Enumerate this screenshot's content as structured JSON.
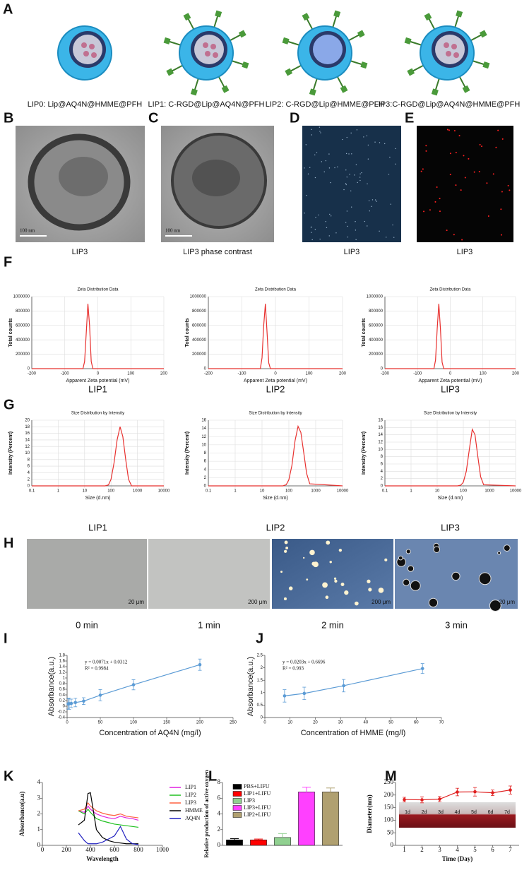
{
  "figure": {
    "panel_labels": [
      "A",
      "B",
      "C",
      "D",
      "E",
      "F",
      "G",
      "H",
      "I",
      "J",
      "K",
      "L",
      "M"
    ],
    "a_captions": [
      "LIP0: Lip@AQ4N@HMME@PFH",
      "LIP1: C-RGD@Lip@AQ4N@PFH",
      "LIP2: C-RGD@Lip@HMME@PFH",
      "LIP3:C-RGD@Lip@AQ4N@HMME@PFH"
    ],
    "images": [
      {
        "caption": "LIP3",
        "scale": "100 nm"
      },
      {
        "caption": "LIP3 phase contrast",
        "scale": "100 nm"
      },
      {
        "caption": "LIP3"
      },
      {
        "caption": "LIP3"
      }
    ],
    "h_images": [
      {
        "caption": "0 min",
        "scale": "20 μm"
      },
      {
        "caption": "1 min",
        "scale": "200 μm"
      },
      {
        "caption": "2 min",
        "scale": "200 μm"
      },
      {
        "caption": "3 min",
        "scale": "20 μm"
      }
    ],
    "m_inset_labels": [
      "1d",
      "2d",
      "3d",
      "4d",
      "5d",
      "6d",
      "7d"
    ]
  },
  "chart_data": [
    {
      "type": "line",
      "title": "Zeta Distribution Data",
      "x_label": "Apparent Zeta potential (mV)",
      "y_label": "Total counts",
      "caption": "LIP1",
      "x": [
        -200,
        -55,
        -45,
        -40,
        -35,
        -30,
        -25,
        -20,
        -15,
        200
      ],
      "values": [
        0,
        0,
        0,
        100000,
        500000,
        900000,
        600000,
        100000,
        0,
        0
      ],
      "color": "#e8312f",
      "xlim": [
        -200,
        200
      ],
      "xticks": [
        -200,
        -100,
        0,
        100,
        200
      ],
      "ylim": [
        0,
        1000000
      ],
      "yticks": [
        0,
        200000,
        400000,
        600000,
        800000,
        1000000
      ],
      "grid": true
    },
    {
      "type": "line",
      "title": "Zeta Distribution Data",
      "x_label": "Apparent Zeta potential (mV)",
      "y_label": "Total counts",
      "caption": "LIP2",
      "x": [
        -200,
        -55,
        -45,
        -40,
        -35,
        -30,
        -25,
        -20,
        -15,
        200
      ],
      "values": [
        0,
        0,
        0,
        150000,
        600000,
        900000,
        500000,
        80000,
        0,
        0
      ],
      "color": "#e8312f",
      "xlim": [
        -200,
        200
      ],
      "xticks": [
        -200,
        -100,
        0,
        100,
        200
      ],
      "ylim": [
        0,
        1000000
      ],
      "yticks": [
        0,
        200000,
        400000,
        600000,
        800000,
        1000000
      ],
      "grid": true
    },
    {
      "type": "line",
      "title": "Zeta Distribution Data",
      "x_label": "Apparent Zeta potential (mV)",
      "y_label": "Total counts",
      "caption": "LIP3",
      "x": [
        -200,
        -60,
        -50,
        -45,
        -40,
        -35,
        -30,
        -25,
        -20,
        200
      ],
      "values": [
        0,
        0,
        0,
        120000,
        550000,
        900000,
        550000,
        90000,
        0,
        0
      ],
      "color": "#e8312f",
      "xlim": [
        -200,
        200
      ],
      "xticks": [
        -200,
        -100,
        0,
        100,
        200
      ],
      "ylim": [
        0,
        1000000
      ],
      "yticks": [
        0,
        200000,
        400000,
        600000,
        800000,
        1000000
      ],
      "grid": true
    },
    {
      "type": "line",
      "title": "Size Distribution by Intensity",
      "x_label": "Size (d.nm)",
      "y_label": "Intensity (Percent)",
      "caption": "LIP1",
      "log_x": true,
      "x": [
        0.1,
        60,
        80,
        100,
        130,
        170,
        220,
        280,
        360,
        460,
        600,
        10000
      ],
      "values": [
        0,
        0,
        0.3,
        2,
        7,
        14,
        18,
        15,
        8,
        2,
        0,
        0
      ],
      "color": "#e8312f",
      "xlim": [
        0.1,
        10000
      ],
      "xticks": [
        0.1,
        1,
        10,
        100,
        1000,
        10000
      ],
      "ylim": [
        0,
        20
      ],
      "yticks": [
        0,
        2,
        4,
        6,
        8,
        10,
        12,
        14,
        16,
        18,
        20
      ],
      "grid": true
    },
    {
      "type": "line",
      "title": "Size Distribution by Intensity",
      "x_label": "Size (d.nm)",
      "y_label": "Intensity (Percent)",
      "caption": "LIP2",
      "log_x": true,
      "x": [
        0.1,
        60,
        80,
        100,
        130,
        170,
        220,
        280,
        360,
        460,
        600,
        10000
      ],
      "values": [
        0,
        0,
        0.3,
        1.5,
        5,
        11,
        14.5,
        13,
        8,
        3,
        0.5,
        0
      ],
      "color": "#e8312f",
      "xlim": [
        0.1,
        10000
      ],
      "xticks": [
        0.1,
        1,
        10,
        100,
        1000,
        10000
      ],
      "ylim": [
        0,
        16
      ],
      "yticks": [
        0,
        2,
        4,
        6,
        8,
        10,
        12,
        14,
        16
      ],
      "grid": true
    },
    {
      "type": "line",
      "title": "Size Distribution by Intensity",
      "x_label": "Size (d.nm)",
      "y_label": "Intensity (Percent)",
      "caption": "LIP3",
      "log_x": true,
      "x": [
        0.1,
        60,
        80,
        100,
        130,
        170,
        220,
        280,
        360,
        460,
        600,
        10000
      ],
      "values": [
        0,
        0,
        0.2,
        1,
        4,
        10,
        15.5,
        14,
        8,
        2.5,
        0.3,
        0
      ],
      "color": "#e8312f",
      "xlim": [
        0.1,
        10000
      ],
      "xticks": [
        0.1,
        1,
        10,
        100,
        1000,
        10000
      ],
      "ylim": [
        0,
        18
      ],
      "yticks": [
        0,
        2,
        4,
        6,
        8,
        10,
        12,
        14,
        16,
        18
      ],
      "grid": true
    },
    {
      "type": "line",
      "x_label": "Concentration of AQ4N (mg/l)",
      "y_label": "Absorbance(a.u.)",
      "annotations": [
        "y = 0.0071x + 0.0312",
        "R² = 0.9984"
      ],
      "markers": true,
      "x": [
        1.5625,
        3.125,
        6.25,
        12.5,
        25,
        50,
        100,
        200
      ],
      "values": [
        0.08,
        0.09,
        0.1,
        0.13,
        0.18,
        0.39,
        0.76,
        1.47
      ],
      "errors": [
        0.18,
        0.2,
        0.15,
        0.15,
        0.12,
        0.2,
        0.18,
        0.2
      ],
      "color": "#5b9bd5",
      "xlim": [
        0,
        250
      ],
      "xticks": [
        0,
        50,
        100,
        150,
        200,
        250
      ],
      "ylim": [
        -0.4,
        1.8
      ],
      "yticks": [
        -0.4,
        -0.2,
        0,
        0.2,
        0.4,
        0.6,
        0.8,
        1,
        1.2,
        1.4,
        1.6,
        1.8
      ],
      "grid": false
    },
    {
      "type": "line",
      "x_label": "Concentration of HMME (mg/l)",
      "y_label": "Absorbance(a.u.)",
      "annotations": [
        "y = 0.0203x + 0.6696",
        "R² = 0.993"
      ],
      "markers": true,
      "x": [
        7.8125,
        15.625,
        31.25,
        62.5
      ],
      "values": [
        0.87,
        0.97,
        1.28,
        1.97
      ],
      "errors": [
        0.25,
        0.25,
        0.25,
        0.2
      ],
      "color": "#5b9bd5",
      "xlim": [
        0,
        70
      ],
      "xticks": [
        0,
        10,
        20,
        30,
        40,
        50,
        60,
        70
      ],
      "ylim": [
        0,
        2.5
      ],
      "yticks": [
        0,
        0.5,
        1,
        1.5,
        2,
        2.5
      ],
      "grid": false
    },
    {
      "type": "line",
      "x_label": "Wavelength",
      "y_label": "Absorbance(a.u)",
      "legend": "right",
      "x": [
        300,
        350,
        380,
        400,
        450,
        500,
        550,
        600,
        650,
        700,
        750,
        800
      ],
      "series": [
        {
          "name": "LIP1",
          "color": "#e020e0",
          "values": [
            2.2,
            2.1,
            2.5,
            2.3,
            2.0,
            1.85,
            1.75,
            1.7,
            1.85,
            1.75,
            1.7,
            1.6
          ]
        },
        {
          "name": "LIP2",
          "color": "#20c020",
          "values": [
            2.2,
            2.0,
            2.3,
            2.1,
            1.7,
            1.55,
            1.45,
            1.35,
            1.3,
            1.25,
            1.2,
            1.15
          ]
        },
        {
          "name": "LIP3",
          "color": "#ff6040",
          "values": [
            2.2,
            2.3,
            2.7,
            2.5,
            2.2,
            2.05,
            1.95,
            1.9,
            2.0,
            1.85,
            1.8,
            1.75
          ]
        },
        {
          "name": "HMME",
          "color": "#000000",
          "values": [
            1.3,
            1.6,
            3.3,
            3.35,
            1.0,
            0.5,
            0.3,
            0.2,
            0.15,
            0.1,
            0.1,
            0.1
          ]
        },
        {
          "name": "AQ4N",
          "color": "#2020c0",
          "values": [
            0.8,
            0.3,
            0.1,
            0.1,
            0.1,
            0.2,
            0.4,
            0.6,
            1.2,
            0.4,
            0.1,
            0.05
          ]
        }
      ],
      "xlim": [
        0,
        1000
      ],
      "xticks": [
        0,
        200,
        400,
        600,
        800,
        1000
      ],
      "ylim": [
        0,
        4
      ],
      "yticks": [
        0,
        1,
        2,
        3,
        4
      ],
      "grid": false
    },
    {
      "type": "bar",
      "y_label": "Relative production of active oxygen",
      "legend": "upper left",
      "series": [
        {
          "name": "PBS+LIFU",
          "color": "#000000",
          "values": [
            0.7
          ],
          "errors": [
            0.15
          ]
        },
        {
          "name": "LIP1+LIFU",
          "color": "#ff0000",
          "values": [
            0.7
          ],
          "errors": [
            0.1
          ]
        },
        {
          "name": "LIP3",
          "color": "#90d090",
          "values": [
            1.0
          ],
          "errors": [
            0.5
          ]
        },
        {
          "name": "LIP3+LIFU",
          "color": "#ff40ff",
          "values": [
            6.8
          ],
          "errors": [
            0.6
          ]
        },
        {
          "name": "LIP2+LIFU",
          "color": "#b0a070",
          "values": [
            6.8
          ],
          "errors": [
            0.5
          ]
        }
      ],
      "ylim": [
        0,
        8
      ],
      "yticks": [
        0,
        2,
        4,
        6,
        8
      ],
      "grid": false
    },
    {
      "type": "line",
      "x_label": "Time (Day)",
      "y_label": "Diameter(nm)",
      "markers": true,
      "x": [
        1,
        2,
        3,
        4,
        5,
        6,
        7
      ],
      "values": [
        182,
        181,
        184,
        212,
        213,
        209,
        220
      ],
      "errors": [
        9,
        12,
        10,
        15,
        17,
        11,
        16
      ],
      "color": "#e02020",
      "xlim": [
        0.5,
        7.5
      ],
      "xticks": [
        1,
        2,
        3,
        4,
        5,
        6,
        7
      ],
      "ylim": [
        0,
        250
      ],
      "yticks": [
        0,
        50,
        100,
        150,
        200,
        250
      ],
      "grid": false
    }
  ]
}
